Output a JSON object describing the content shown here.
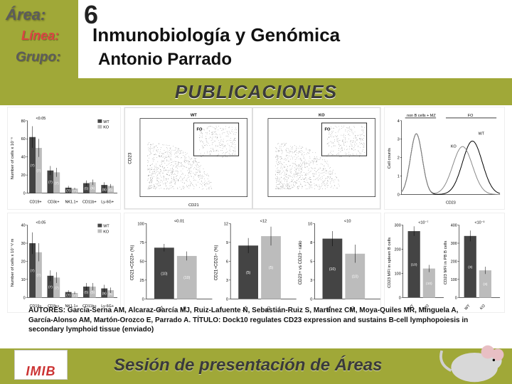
{
  "header": {
    "area_label": "Área:",
    "linea_label": "Línea:",
    "grupo_label": "Grupo:",
    "area_value": "6",
    "linea_value": "Inmunobiología y Genómica",
    "grupo_value": "Antonio Parrado"
  },
  "publications_title": "PUBLICACIONES",
  "colors": {
    "olive": "#a0a838",
    "wt_bar": "#444444",
    "ko_bar": "#bcbcbc",
    "axis": "#000000",
    "bg": "#ffffff"
  },
  "chart_tl": {
    "type": "bar",
    "ylabel": "Number of cells x 10⁻⁶",
    "pvalue": "<0.05",
    "ylim": [
      0,
      80
    ],
    "ytick_step": 20,
    "categories": [
      "CD19+",
      "CD3ε+",
      "NK1.1+",
      "CD11b+",
      "Ly-6G+"
    ],
    "wt": [
      62,
      25,
      6,
      11,
      9
    ],
    "ko": [
      50,
      23,
      5,
      12,
      8
    ],
    "wt_err": [
      12,
      5,
      2,
      3,
      3
    ],
    "ko_err": [
      10,
      5,
      1,
      3,
      2
    ],
    "bar_labels_wt": [
      "(7)",
      "(7)",
      "(7)",
      "(5)",
      "(5)"
    ],
    "bar_labels_ko": [
      "(7)",
      "(7)",
      "(7)",
      "(5)",
      "(5)"
    ],
    "bar_width": 0.35
  },
  "chart_bl": {
    "type": "bar",
    "ylabel": "Number of cells x 10⁻⁶/ m",
    "pvalue": "<0.05",
    "ylim": [
      0,
      40
    ],
    "ytick_step": 10,
    "categories": [
      "CD19+",
      "CD3ε+",
      "NK1.1+",
      "CD11b+",
      "Ly-6G+"
    ],
    "wt": [
      30,
      12,
      3,
      6,
      5
    ],
    "ko": [
      25,
      11,
      2.5,
      6,
      4
    ],
    "wt_err": [
      6,
      3,
      1,
      2,
      2
    ],
    "ko_err": [
      5,
      3,
      0.8,
      2,
      1.5
    ],
    "bar_labels_wt": [
      "(7)",
      "(7)",
      "(7)",
      "(5)",
      "(5)"
    ],
    "bar_labels_ko": [
      "(7)",
      "(7)",
      "(7)",
      "(5)",
      "(5)"
    ],
    "bar_width": 0.35
  },
  "flow_tm": {
    "type": "scatter",
    "xlabel": "CD21",
    "ylabel": "CD23",
    "panels": [
      {
        "title": "WT",
        "gate": "FO"
      },
      {
        "title": "KO",
        "gate": "FO"
      }
    ]
  },
  "histogram_tr": {
    "type": "line",
    "ylabel": "Cell counts",
    "xlabel": "CD23",
    "ylim": [
      0,
      4
    ],
    "ytick_step": 1,
    "region_labels": [
      "non B cells + MZ",
      "FO"
    ],
    "curves": [
      {
        "label": "WT",
        "color": "#000000"
      },
      {
        "label": "KO",
        "color": "#888888"
      }
    ]
  },
  "chart_bm": {
    "type": "bar",
    "panels": [
      {
        "ylabel": "CD21+CD23+ (%)",
        "pvalue": "<0.01",
        "ylim": [
          0,
          100
        ],
        "wt": 68,
        "ko": 57,
        "wt_err": 5,
        "ko_err": 6,
        "wt_lbl": "(10)",
        "ko_lbl": "(10)"
      },
      {
        "ylabel": "CD21+CD23− (%)",
        "pvalue": "<12",
        "ylim": [
          0,
          12
        ],
        "wt": 8.5,
        "ko": 10,
        "wt_err": 1.2,
        "ko_err": 1.5,
        "wt_lbl": "(5)",
        "ko_lbl": "(5)"
      },
      {
        "ylabel": "CD23+ vs CD23− ratio",
        "pvalue": "<10",
        "ylim": [
          0,
          10
        ],
        "wt": 8,
        "ko": 6,
        "wt_err": 1,
        "ko_err": 1.2,
        "wt_lbl": "(10)",
        "ko_lbl": "(10)"
      }
    ],
    "xtick_labels": [
      "WT",
      "KO"
    ]
  },
  "chart_br": {
    "type": "bar",
    "panels": [
      {
        "ylabel": "CD23 MFI in spleen B cells",
        "pvalue": "<10⁻⁷",
        "ylim": [
          0,
          300
        ],
        "ytick_step": 100,
        "wt": 275,
        "ko": 120,
        "wt_err": 20,
        "ko_err": 15,
        "wt_lbl": "(10)",
        "ko_lbl": "(10)"
      },
      {
        "ylabel": "CD23 MFI in PB B cells",
        "pvalue": "<10⁻³",
        "ylim": [
          0,
          400
        ],
        "ytick_step": 100,
        "wt": 340,
        "ko": 150,
        "wt_err": 30,
        "ko_err": 20,
        "wt_lbl": "(3)",
        "ko_lbl": "(3)"
      }
    ],
    "xtick_labels": [
      "WT",
      "KO"
    ]
  },
  "legend": {
    "wt": "WT",
    "ko": "KO"
  },
  "authors_text": "AUTORES: García-Serna AM, Alcaraz-García MJ, Ruiz-Lafuente N, Sebastián-Ruiz S, Martínez CM, Moya-Quiles MR, Minguela A, García-Alonso AM, Martón-Orozco E, Parrado A. TÍTULO: Dock10 regulates CD23 expression and sustains B-cell lymphopoiesis in secondary lymphoid tissue (enviado)",
  "footer": {
    "logo": "IMIB",
    "session": "Sesión de presentación de Áreas"
  }
}
